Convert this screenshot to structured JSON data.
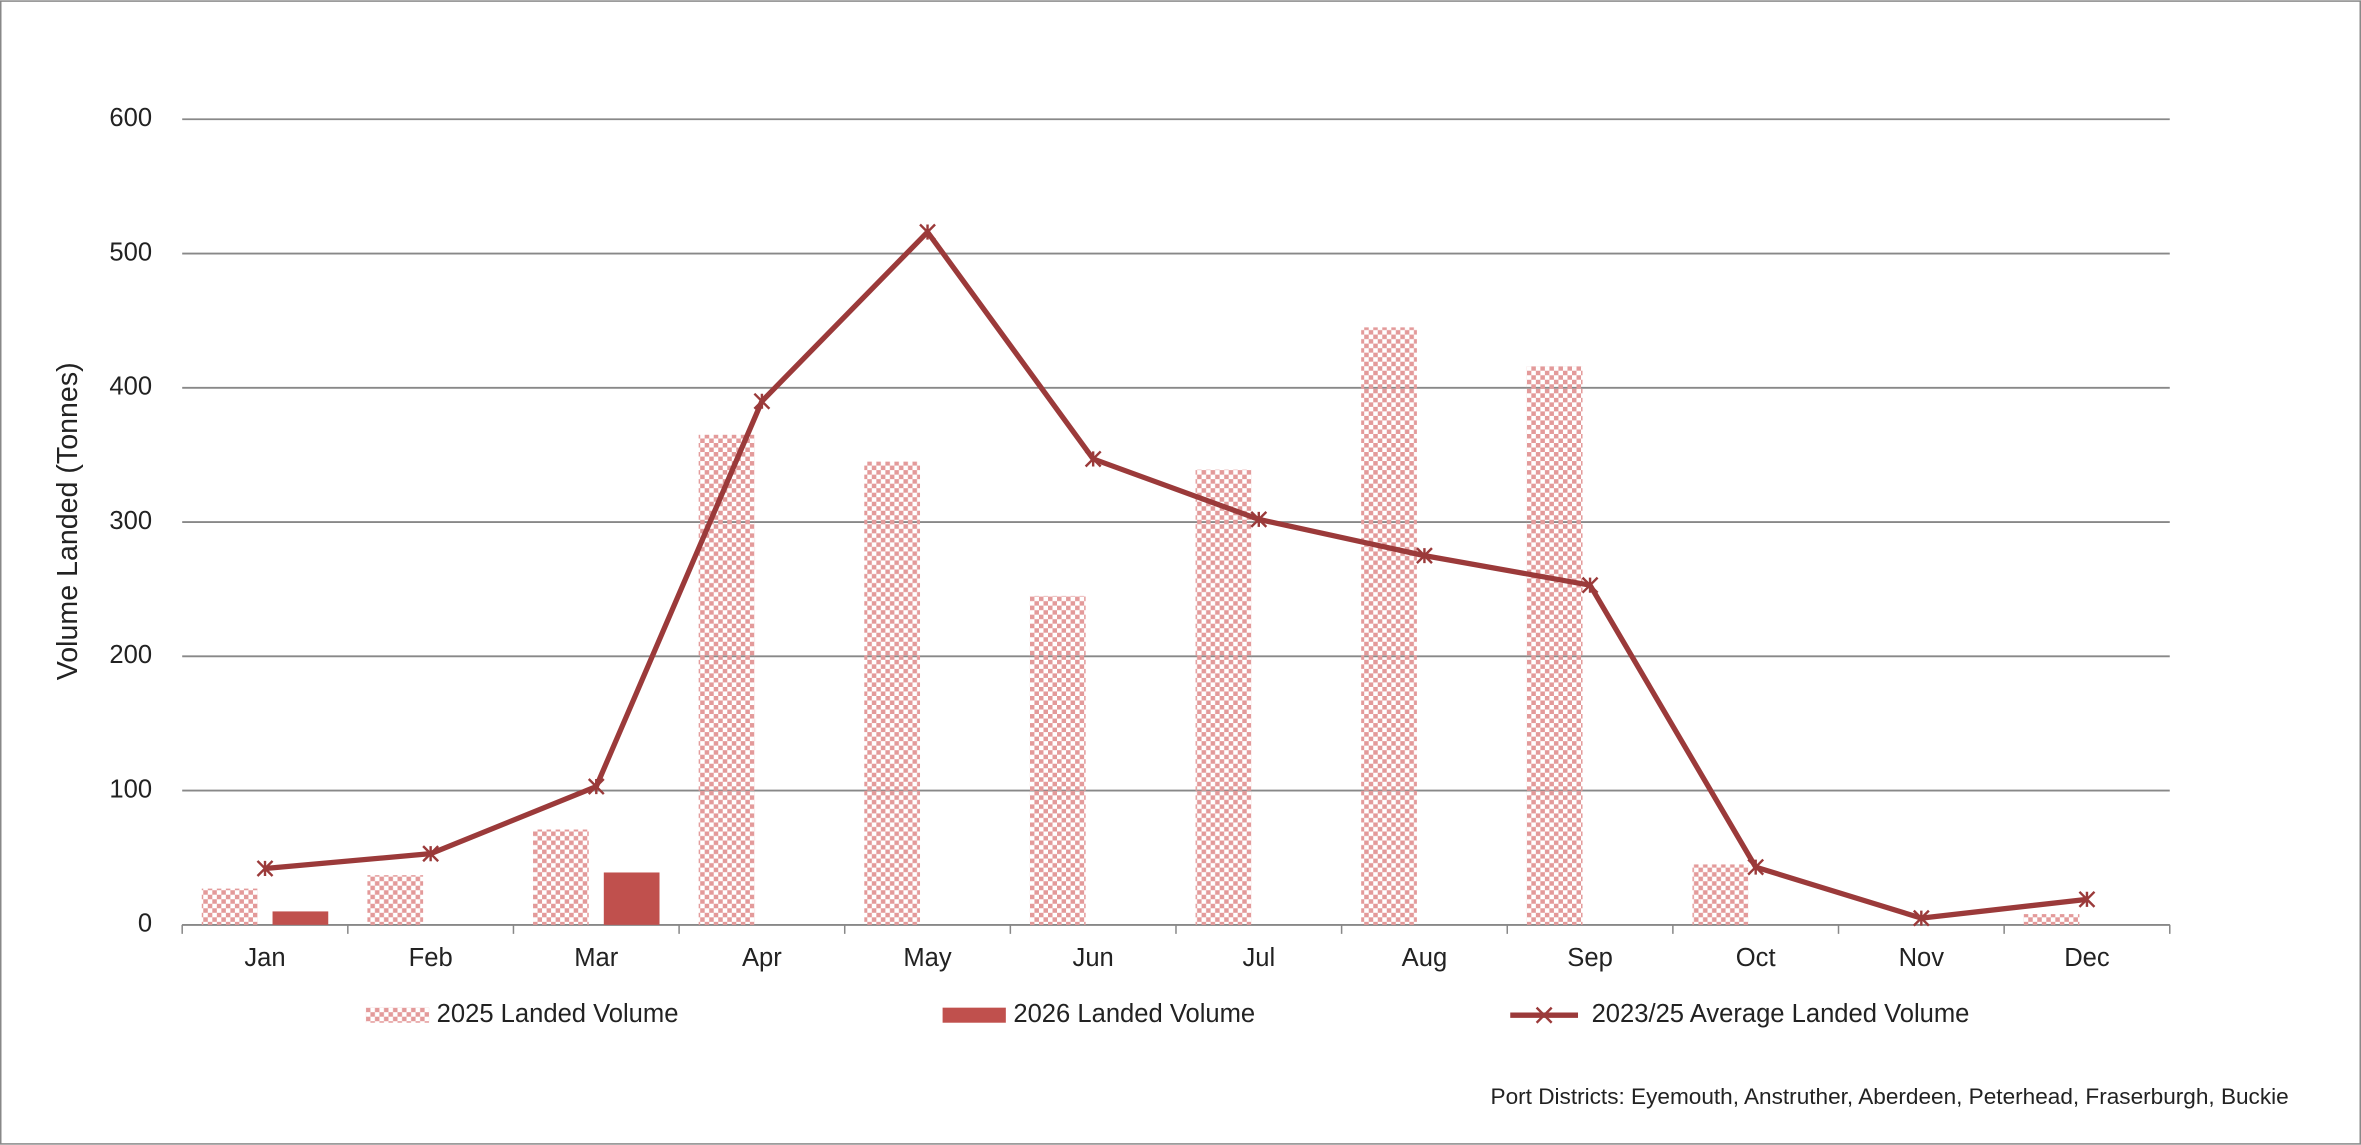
{
  "chart_data": {
    "type": "bar_line",
    "y_axis_label": "Volume Landed (Tonnes)",
    "footnote": "Port Districts: Eyemouth, Anstruther, Aberdeen, Peterhead, Fraserburgh, Buckie",
    "categories": [
      "Jan",
      "Feb",
      "Mar",
      "Apr",
      "May",
      "Jun",
      "Jul",
      "Aug",
      "Sep",
      "Oct",
      "Nov",
      "Dec"
    ],
    "series": [
      {
        "name": "2025 Landed Volume",
        "type": "bar",
        "pattern": "checker",
        "color": "#e39a9a",
        "values": [
          27,
          37,
          71,
          365,
          345,
          245,
          339,
          445,
          416,
          45,
          0,
          8
        ]
      },
      {
        "name": "2026 Landed Volume",
        "type": "bar",
        "color": "#c0504d",
        "values": [
          10,
          null,
          39,
          null,
          null,
          null,
          null,
          null,
          null,
          null,
          null,
          null
        ]
      },
      {
        "name": "2023/25 Average Landed Volume",
        "type": "line",
        "color": "#9b3a3a",
        "values": [
          42,
          53,
          103,
          390,
          516,
          347,
          302,
          275,
          253,
          43,
          5,
          19
        ]
      }
    ],
    "ylim": [
      0,
      600
    ],
    "yticks": [
      0,
      100,
      200,
      300,
      400,
      500,
      600
    ],
    "grid": true
  }
}
